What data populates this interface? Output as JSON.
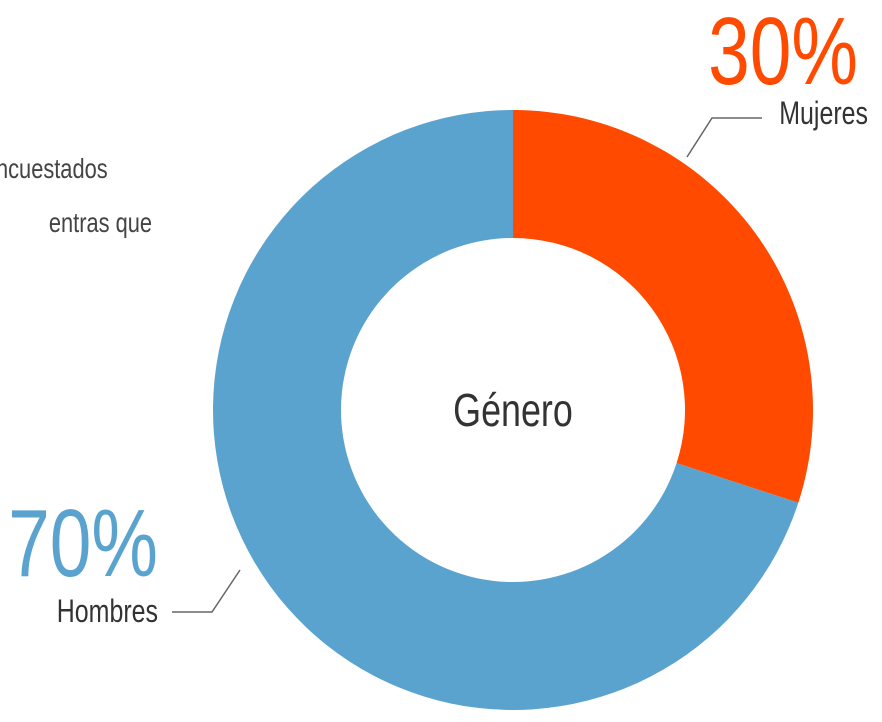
{
  "chart_data": {
    "type": "donut",
    "title": "Género",
    "categories": [
      "Mujeres",
      "Hombres"
    ],
    "values": [
      30,
      70
    ],
    "value_labels": [
      "30%",
      "70%"
    ],
    "colors": [
      "#ff4a00",
      "#5ba3cf"
    ],
    "annotations": [
      "ncuestados",
      "entras que"
    ]
  }
}
